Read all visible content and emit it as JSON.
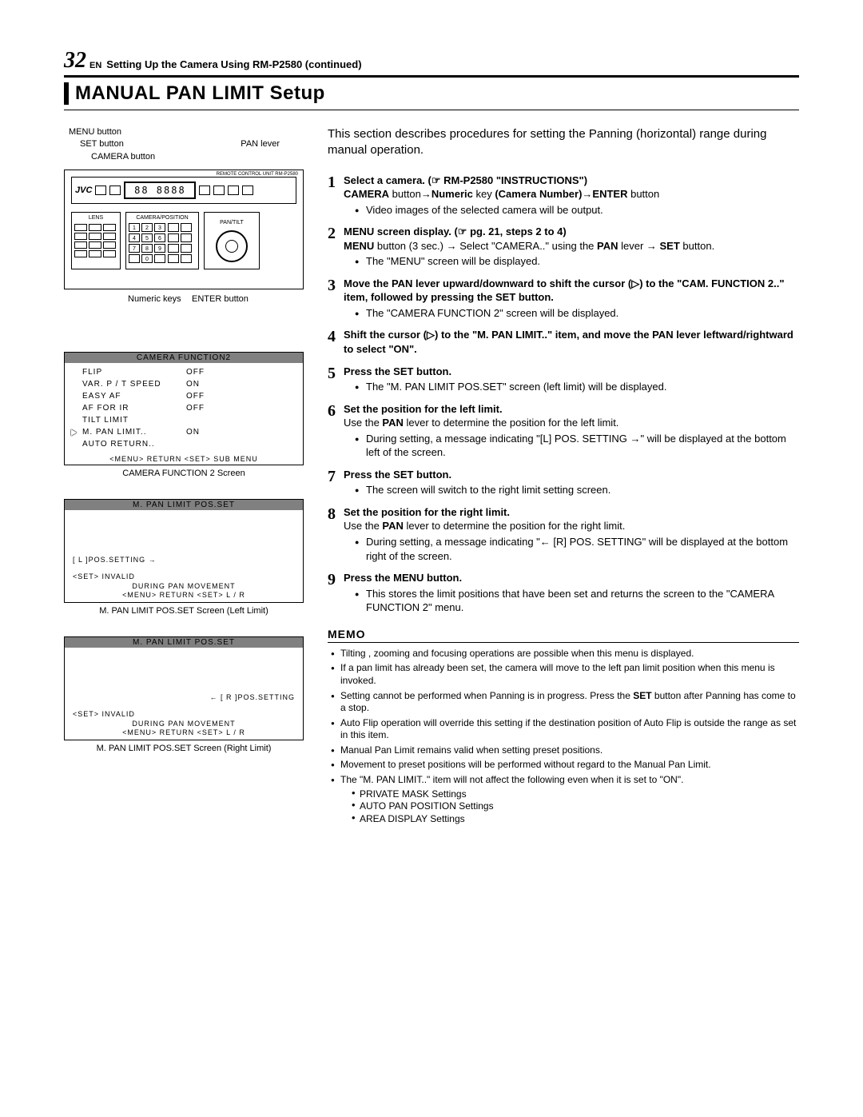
{
  "header": {
    "page_number": "32",
    "lang": "EN",
    "breadcrumb": "Setting Up the Camera Using RM-P2580 (continued)"
  },
  "section_title": "MANUAL PAN LIMIT Setup",
  "intro": "This section describes procedures for setting the Panning (horizontal) range during manual operation.",
  "callouts": {
    "menu": "MENU button",
    "set": "SET button",
    "camera": "CAMERA button",
    "pan_lever": "PAN lever",
    "numeric": "Numeric keys",
    "enter": "ENTER button"
  },
  "controller": {
    "brand": "JVC",
    "unit_label": "REMOTE CONTROL UNIT RM-P2580",
    "lcd_sample": "88 8888",
    "panel_lens": "LENS",
    "panel_campos": "CAMERA/POSITION",
    "panel_pantilt": "PAN/TILT",
    "keypad": [
      "1",
      "2",
      "3",
      "4",
      "5",
      "6",
      "7",
      "8",
      "9",
      "",
      "0",
      ""
    ]
  },
  "steps": [
    {
      "n": "1",
      "title": "Select a camera. (☞ RM-P2580 \"INSTRUCTIONS\")",
      "lines": [
        "<b>CAMERA</b> button→<b>Numeric</b> key <b>(Camera Number)</b>→<b>ENTER</b> button"
      ],
      "bullets": [
        "Video images of the selected camera will be output."
      ]
    },
    {
      "n": "2",
      "title": "MENU screen display. (☞ pg. 21, steps 2 to 4)",
      "lines": [
        "<b>MENU</b> button (3 sec.) → Select \"CAMERA..\" using the <b>PAN</b> lever → <b>SET</b> button."
      ],
      "bullets": [
        "The \"MENU\" screen will be displayed."
      ]
    },
    {
      "n": "3",
      "title": "Move the PAN lever upward/downward to shift the cursor (▷) to the \"CAM. FUNCTION 2..\" item, followed by pressing the SET button.",
      "lines": [],
      "bullets": [
        "The \"CAMERA FUNCTION 2\" screen will be displayed."
      ]
    },
    {
      "n": "4",
      "title": "Shift the cursor (▷) to the \"M. PAN LIMIT..\" item, and move the PAN lever leftward/rightward to select \"ON\".",
      "lines": [],
      "bullets": []
    },
    {
      "n": "5",
      "title": "Press the SET button.",
      "lines": [],
      "bullets": [
        "The \"M. PAN LIMIT POS.SET\" screen (left limit) will be displayed."
      ]
    },
    {
      "n": "6",
      "title": "Set the position for the left limit.",
      "lines": [
        "Use the <b>PAN</b> lever to determine the position for the left limit."
      ],
      "bullets": [
        "During setting, a message indicating \"[L] POS. SETTING →\" will be displayed at the bottom left of the screen."
      ]
    },
    {
      "n": "7",
      "title": "Press the SET button.",
      "lines": [],
      "bullets": [
        "The screen will switch to the right limit setting screen."
      ]
    },
    {
      "n": "8",
      "title": "Set the position for the right limit.",
      "lines": [
        "Use the <b>PAN</b> lever to determine the position for the right limit."
      ],
      "bullets": [
        "During setting, a message indicating \"← [R] POS. SETTING\" will be displayed at the bottom right of the screen."
      ]
    },
    {
      "n": "9",
      "title": "Press the MENU button.",
      "lines": [],
      "bullets": [
        "This stores the limit positions that have been set and returns the screen to the \"CAMERA FUNCTION 2\" menu."
      ]
    }
  ],
  "memo_title": "MEMO",
  "memo": [
    "Tilting , zooming and focusing operations are possible when this menu is displayed.",
    "If a pan limit has already been set, the camera will move to the left pan limit position when this menu is invoked.",
    "Setting cannot be performed when Panning is in progress. Press the <b>SET</b> button after Panning has come to a stop.",
    "Auto Flip operation will override this setting if the destination position of Auto Flip is outside the range as set in this item.",
    "Manual Pan Limit remains valid when setting preset positions.",
    "Movement to preset positions will be performed without regard to the Manual Pan Limit.",
    "The \"M. PAN LIMIT..\" item will not affect the following even when it is set to \"ON\"."
  ],
  "memo_sub": [
    "PRIVATE MASK Settings",
    "AUTO PAN POSITION Settings",
    "AREA DISPLAY Settings"
  ],
  "screen1": {
    "title": "CAMERA  FUNCTION2",
    "rows": [
      [
        "",
        "FLIP",
        "OFF"
      ],
      [
        "",
        "VAR. P / T  SPEED",
        "ON"
      ],
      [
        "",
        "EASY  AF",
        "OFF"
      ],
      [
        "",
        "AF  FOR  IR",
        "OFF"
      ],
      [
        "",
        "TILT  LIMIT",
        ""
      ],
      [
        "▷",
        "M. PAN  LIMIT..",
        "ON"
      ],
      [
        "",
        "AUTO  RETURN..",
        ""
      ]
    ],
    "footer": "<MENU> RETURN  <SET> SUB  MENU",
    "caption": "CAMERA FUNCTION 2 Screen"
  },
  "screen2": {
    "title": "M. PAN  LIMIT POS.SET",
    "mid": "[ L ]POS.SETTING →",
    "bot1": "<SET> INVALID",
    "bot2": "DURING  PAN  MOVEMENT",
    "bot3": "<MENU> RETURN  <SET> L / R",
    "caption": "M. PAN LIMIT POS.SET Screen (Left Limit)"
  },
  "screen3": {
    "title": "M. PAN  LIMIT POS.SET",
    "mid": "← [ R ]POS.SETTING",
    "bot1": "<SET> INVALID",
    "bot2": "DURING  PAN  MOVEMENT",
    "bot3": "<MENU> RETURN  <SET> L / R",
    "caption": "M. PAN LIMIT POS.SET Screen (Right Limit)"
  }
}
